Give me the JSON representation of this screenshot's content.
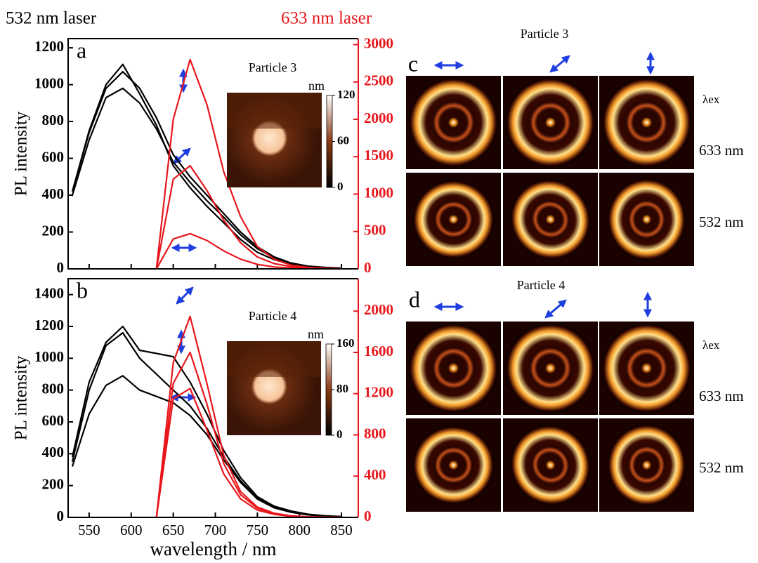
{
  "header": {
    "left_laser": "532 nm laser",
    "right_laser": "633 nm laser"
  },
  "chart_data": [
    {
      "type": "line",
      "label": "a",
      "ylabel": "PL intensity",
      "show_xtick_labels": false,
      "x": [
        530,
        550,
        570,
        590,
        610,
        630,
        650,
        670,
        690,
        710,
        730,
        750,
        770,
        790,
        810,
        830,
        850
      ],
      "xlim": [
        525,
        870
      ],
      "xticks": [
        550,
        600,
        650,
        700,
        750,
        800,
        850
      ],
      "ylim": [
        0,
        1250
      ],
      "yticks": [
        0,
        200,
        400,
        600,
        800,
        1000,
        1200
      ],
      "y2lim": [
        0,
        3080
      ],
      "y2ticks": [
        0,
        500,
        1000,
        1500,
        2000,
        2500,
        3000
      ],
      "y2color": "#e8161b",
      "series": [
        {
          "color": "#000000",
          "values": [
            420,
            750,
            1000,
            1110,
            950,
            780,
            560,
            440,
            340,
            250,
            160,
            90,
            50,
            25,
            12,
            6,
            3
          ]
        },
        {
          "color": "#000000",
          "values": [
            420,
            740,
            980,
            1070,
            980,
            820,
            620,
            500,
            400,
            300,
            200,
            120,
            65,
            32,
            15,
            8,
            4
          ]
        },
        {
          "color": "#000000",
          "values": [
            400,
            700,
            930,
            980,
            900,
            760,
            580,
            470,
            370,
            280,
            185,
            110,
            60,
            30,
            14,
            7,
            3
          ]
        },
        {
          "color": "#e8161b",
          "axis": "y2",
          "values": [
            null,
            null,
            null,
            null,
            null,
            0,
            2000,
            2800,
            2200,
            1300,
            700,
            300,
            130,
            50,
            20,
            8,
            3
          ]
        },
        {
          "color": "#e8161b",
          "axis": "y2",
          "values": [
            null,
            null,
            null,
            null,
            null,
            0,
            1200,
            1380,
            1050,
            650,
            350,
            160,
            70,
            30,
            12,
            5,
            2
          ]
        },
        {
          "color": "#e8161b",
          "axis": "y2",
          "values": [
            null,
            null,
            null,
            null,
            null,
            0,
            400,
            470,
            380,
            240,
            130,
            60,
            25,
            10,
            5,
            2,
            1
          ]
        }
      ],
      "inset": {
        "title": "Particle 3",
        "unit": "nm",
        "ticks": [
          0,
          60,
          120
        ]
      }
    },
    {
      "type": "line",
      "label": "b",
      "ylabel": "PL intensity",
      "xlabel": "wavelength / nm",
      "show_xtick_labels": true,
      "x": [
        530,
        550,
        570,
        590,
        610,
        630,
        650,
        670,
        690,
        710,
        730,
        750,
        770,
        790,
        810,
        830,
        850
      ],
      "xlim": [
        525,
        870
      ],
      "xticks": [
        550,
        600,
        650,
        700,
        750,
        800,
        850
      ],
      "ylim": [
        0,
        1500
      ],
      "yticks": [
        0,
        200,
        400,
        600,
        800,
        1000,
        1200,
        1400
      ],
      "y2lim": [
        0,
        2315
      ],
      "y2ticks": [
        0,
        400,
        800,
        1200,
        1600,
        2000
      ],
      "y2color": "#e8161b",
      "series": [
        {
          "color": "#000000",
          "values": [
            380,
            850,
            1100,
            1200,
            1050,
            1030,
            1010,
            850,
            650,
            420,
            250,
            130,
            70,
            40,
            20,
            10,
            5
          ]
        },
        {
          "color": "#000000",
          "values": [
            350,
            800,
            1080,
            1160,
            1000,
            900,
            800,
            700,
            560,
            380,
            230,
            120,
            65,
            35,
            18,
            9,
            4
          ]
        },
        {
          "color": "#000000",
          "values": [
            320,
            650,
            830,
            890,
            800,
            760,
            720,
            640,
            520,
            360,
            220,
            115,
            60,
            32,
            16,
            8,
            4
          ]
        },
        {
          "color": "#e8161b",
          "axis": "y2",
          "values": [
            null,
            null,
            null,
            null,
            null,
            0,
            1500,
            1950,
            1300,
            600,
            250,
            100,
            40,
            15,
            6,
            3,
            1
          ]
        },
        {
          "color": "#e8161b",
          "axis": "y2",
          "values": [
            null,
            null,
            null,
            null,
            null,
            0,
            1300,
            1600,
            1100,
            520,
            220,
            90,
            35,
            13,
            5,
            2,
            1
          ]
        },
        {
          "color": "#e8161b",
          "axis": "y2",
          "values": [
            null,
            null,
            null,
            null,
            null,
            0,
            1150,
            1250,
            850,
            420,
            180,
            70,
            30,
            10,
            4,
            2,
            1
          ]
        }
      ],
      "inset": {
        "title": "Particle 4",
        "unit": "nm",
        "ticks": [
          0,
          80,
          160
        ]
      }
    }
  ],
  "panels": [
    {
      "letter": "c",
      "title": "Particle 3",
      "excitation": "λex",
      "rows": [
        "633 nm",
        "532 nm"
      ]
    },
    {
      "letter": "d",
      "title": "Particle 4",
      "excitation": "λex",
      "rows": [
        "633 nm",
        "532 nm"
      ]
    }
  ]
}
